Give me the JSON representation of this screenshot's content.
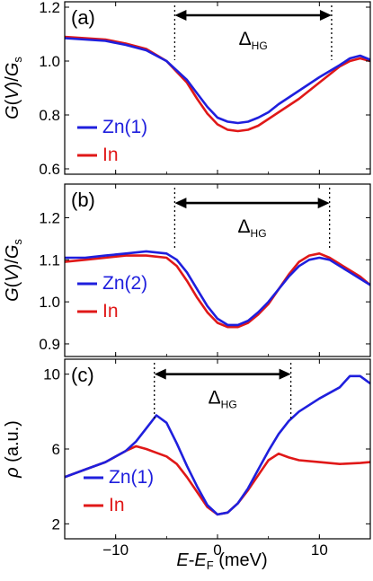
{
  "colors": {
    "blue": "#1f1fdd",
    "red": "#e01818"
  },
  "xaxis": {
    "label_E": "E",
    "label_dash": "-",
    "label_EF": "E",
    "label_F": "F",
    "label_unit": " (meV)",
    "ticks": [
      "-10",
      "0",
      "10"
    ],
    "range": [
      -15,
      15
    ]
  },
  "delta": {
    "main": "Δ",
    "sub": "HG"
  },
  "chart_data": [
    {
      "type": "line",
      "panel": "(a)",
      "ylabel": {
        "G": "G",
        "V": "V",
        "slash": "/",
        "Gs": "G",
        "s": "s"
      },
      "ylim": [
        0.58,
        1.22
      ],
      "yticks": [
        0.6,
        0.8,
        1.0,
        1.2
      ],
      "ytick_labels": [
        "0.6",
        "0.8",
        "1.0",
        "1.2"
      ],
      "delta_x": [
        -4.2,
        11.2
      ],
      "delta_y": 1.17,
      "series": [
        {
          "name": "Zn(1)",
          "color": "#1f1fdd",
          "x": [
            -15,
            -13,
            -11,
            -9,
            -7,
            -5,
            -3,
            -2,
            -1,
            0,
            1,
            2,
            3,
            4,
            5,
            6,
            8,
            10,
            12,
            13,
            14,
            15
          ],
          "y": [
            1.085,
            1.08,
            1.075,
            1.06,
            1.04,
            1.0,
            0.93,
            0.88,
            0.83,
            0.79,
            0.775,
            0.77,
            0.775,
            0.79,
            0.81,
            0.84,
            0.89,
            0.94,
            0.985,
            1.01,
            1.02,
            1.005
          ]
        },
        {
          "name": "In",
          "color": "#e01818",
          "x": [
            -15,
            -13,
            -11,
            -9,
            -7,
            -5,
            -3,
            -2,
            -1,
            0,
            1,
            2,
            3,
            4,
            5,
            6,
            8,
            10,
            12,
            13,
            14,
            15
          ],
          "y": [
            1.09,
            1.085,
            1.08,
            1.065,
            1.045,
            1.0,
            0.92,
            0.86,
            0.805,
            0.765,
            0.745,
            0.74,
            0.745,
            0.76,
            0.785,
            0.81,
            0.86,
            0.92,
            0.98,
            1.0,
            1.01,
            1.0
          ]
        }
      ]
    },
    {
      "type": "line",
      "panel": "(b)",
      "ylabel": {
        "G": "G",
        "V": "V",
        "slash": "/",
        "Gs": "G",
        "s": "s"
      },
      "ylim": [
        0.87,
        1.28
      ],
      "yticks": [
        0.9,
        1.0,
        1.1,
        1.2
      ],
      "ytick_labels": [
        "0.9",
        "1.0",
        "1.1",
        "1.2"
      ],
      "delta_x": [
        -4.2,
        11.0
      ],
      "delta_y": 1.235,
      "series": [
        {
          "name": "Zn(2)",
          "color": "#1f1fdd",
          "x": [
            -15,
            -13,
            -11,
            -9,
            -7,
            -5,
            -4,
            -3,
            -2,
            -1,
            0,
            1,
            2,
            3,
            4,
            5,
            6,
            7,
            8,
            9,
            10,
            11,
            12,
            13,
            14,
            15
          ],
          "y": [
            1.105,
            1.105,
            1.11,
            1.115,
            1.12,
            1.115,
            1.1,
            1.07,
            1.03,
            0.99,
            0.96,
            0.945,
            0.945,
            0.955,
            0.975,
            1.0,
            1.03,
            1.06,
            1.085,
            1.1,
            1.105,
            1.1,
            1.085,
            1.07,
            1.055,
            1.04
          ]
        },
        {
          "name": "In",
          "color": "#e01818",
          "x": [
            -15,
            -13,
            -11,
            -9,
            -7,
            -5,
            -4,
            -3,
            -2,
            -1,
            0,
            1,
            2,
            3,
            4,
            5,
            6,
            7,
            8,
            9,
            10,
            11,
            12,
            13,
            14,
            15
          ],
          "y": [
            1.095,
            1.1,
            1.105,
            1.11,
            1.11,
            1.105,
            1.085,
            1.05,
            1.01,
            0.975,
            0.95,
            0.94,
            0.94,
            0.95,
            0.97,
            0.995,
            1.03,
            1.065,
            1.095,
            1.11,
            1.115,
            1.105,
            1.09,
            1.075,
            1.06,
            1.04
          ]
        }
      ]
    },
    {
      "type": "line",
      "panel": "(c)",
      "ylabel": {
        "rho": "ρ",
        "unit": " (a.u.)"
      },
      "ylim": [
        1.2,
        10.8
      ],
      "yticks": [
        2,
        6,
        10
      ],
      "ytick_labels": [
        "2",
        "6",
        "10"
      ],
      "delta_x": [
        -6.2,
        7.2
      ],
      "delta_y": 10.0,
      "series": [
        {
          "name": "Zn(1)",
          "color": "#1f1fdd",
          "x": [
            -15,
            -13,
            -11,
            -9,
            -8,
            -7,
            -6,
            -5,
            -4,
            -3,
            -2,
            -1,
            0,
            1,
            2,
            3,
            4,
            5,
            6,
            7,
            8,
            10,
            12,
            13,
            14,
            15
          ],
          "y": [
            4.5,
            4.9,
            5.3,
            5.9,
            6.4,
            7.1,
            7.8,
            7.4,
            6.3,
            5.1,
            4.0,
            3.0,
            2.5,
            2.6,
            3.1,
            3.9,
            4.9,
            5.9,
            6.8,
            7.5,
            8.0,
            8.7,
            9.3,
            9.9,
            9.9,
            9.5
          ]
        },
        {
          "name": "In",
          "color": "#e01818",
          "x": [
            -15,
            -13,
            -11,
            -9,
            -8,
            -7,
            -6,
            -5,
            -4,
            -3,
            -2,
            -1,
            0,
            1,
            2,
            3,
            4,
            5,
            6,
            7,
            8,
            10,
            12,
            14,
            15
          ],
          "y": [
            4.5,
            4.9,
            5.3,
            5.9,
            6.15,
            6.0,
            5.8,
            5.6,
            5.2,
            4.5,
            3.7,
            2.9,
            2.5,
            2.6,
            3.1,
            3.8,
            4.6,
            5.4,
            5.75,
            5.55,
            5.4,
            5.3,
            5.2,
            5.25,
            5.3
          ]
        }
      ]
    }
  ]
}
